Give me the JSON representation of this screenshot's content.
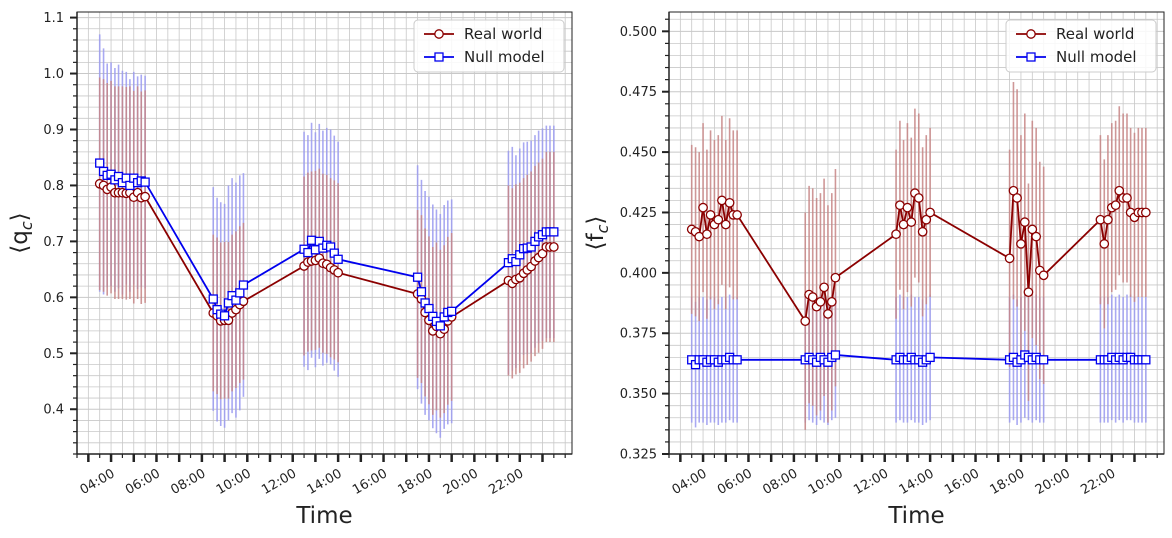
{
  "colors": {
    "real": "#8b0000",
    "real_bar": "#c78585",
    "null": "#0000ee",
    "null_bar": "#9a9af0",
    "grid": "#c8c8c8",
    "axis": "#222222",
    "background": "#ffffff"
  },
  "chart_data": [
    {
      "type": "line",
      "id": "qc",
      "ylabel": "⟨q_c⟩",
      "ylabel_base": "⟨q",
      "ylabel_sub": "c",
      "ylabel_close": "⟩",
      "xlabel": "Time",
      "xlim": [
        2.5,
        24.3
      ],
      "ylim": [
        0.32,
        1.11
      ],
      "yticks": [
        0.4,
        0.5,
        0.6,
        0.7,
        0.8,
        0.9,
        1.0,
        1.1
      ],
      "ytick_labels": [
        "0.4",
        "0.5",
        "0.6",
        "0.7",
        "0.8",
        "0.9",
        "1.0",
        "1.1"
      ],
      "x_major_ticks": [
        4,
        6,
        8,
        10,
        12,
        14,
        16,
        18,
        20,
        22
      ],
      "x_tick_labels": [
        "04:00",
        "06:00",
        "08:00",
        "10:00",
        "12:00",
        "14:00",
        "16:00",
        "18:00",
        "20:00",
        "22:00"
      ],
      "legend_position": "top-right",
      "grid": true,
      "series": [
        {
          "name": "Real world",
          "marker": "circle",
          "x": [
            3.5,
            3.67,
            3.83,
            4.0,
            4.17,
            4.33,
            4.5,
            4.67,
            4.83,
            5.0,
            5.17,
            5.33,
            5.5,
            8.5,
            8.67,
            8.83,
            9.0,
            9.17,
            9.33,
            9.5,
            9.67,
            9.83,
            12.5,
            12.67,
            12.83,
            13.0,
            13.17,
            13.33,
            13.5,
            13.67,
            13.83,
            14.0,
            17.5,
            17.67,
            17.83,
            18.0,
            18.17,
            18.33,
            18.5,
            18.67,
            18.83,
            19.0,
            21.5,
            21.67,
            21.83,
            22.0,
            22.17,
            22.33,
            22.5,
            22.67,
            22.83,
            23.0,
            23.17,
            23.33,
            23.5
          ],
          "y": [
            0.803,
            0.8,
            0.793,
            0.797,
            0.787,
            0.787,
            0.787,
            0.786,
            0.787,
            0.779,
            0.787,
            0.778,
            0.78,
            0.572,
            0.567,
            0.558,
            0.559,
            0.559,
            0.572,
            0.578,
            0.587,
            0.593,
            0.656,
            0.663,
            0.665,
            0.666,
            0.67,
            0.661,
            0.659,
            0.653,
            0.649,
            0.644,
            0.606,
            0.597,
            0.573,
            0.559,
            0.54,
            0.548,
            0.535,
            0.543,
            0.558,
            0.565,
            0.63,
            0.625,
            0.632,
            0.635,
            0.643,
            0.649,
            0.655,
            0.665,
            0.671,
            0.678,
            0.69,
            0.69,
            0.69
          ],
          "errors": [
            0.19,
            0.19,
            0.19,
            0.19,
            0.19,
            0.19,
            0.19,
            0.19,
            0.19,
            0.19,
            0.19,
            0.19,
            0.19,
            0.14,
            0.14,
            0.14,
            0.14,
            0.14,
            0.14,
            0.14,
            0.14,
            0.14,
            0.16,
            0.16,
            0.16,
            0.16,
            0.16,
            0.16,
            0.16,
            0.16,
            0.16,
            0.16,
            0.15,
            0.15,
            0.15,
            0.15,
            0.15,
            0.15,
            0.15,
            0.15,
            0.15,
            0.15,
            0.17,
            0.17,
            0.17,
            0.17,
            0.17,
            0.17,
            0.17,
            0.17,
            0.17,
            0.17,
            0.17,
            0.17,
            0.17
          ]
        },
        {
          "name": "Null model",
          "marker": "square",
          "x": [
            3.5,
            3.67,
            3.83,
            4.0,
            4.17,
            4.33,
            4.5,
            4.67,
            4.83,
            5.0,
            5.17,
            5.33,
            5.5,
            8.5,
            8.67,
            8.83,
            9.0,
            9.17,
            9.33,
            9.5,
            9.67,
            9.83,
            12.5,
            12.67,
            12.83,
            13.0,
            13.17,
            13.33,
            13.5,
            13.67,
            13.83,
            14.0,
            17.5,
            17.67,
            17.83,
            18.0,
            18.17,
            18.33,
            18.5,
            18.67,
            18.83,
            19.0,
            21.5,
            21.67,
            21.83,
            22.0,
            22.17,
            22.33,
            22.5,
            22.67,
            22.83,
            23.0,
            23.17,
            23.33,
            23.5
          ],
          "y": [
            0.84,
            0.825,
            0.818,
            0.82,
            0.81,
            0.816,
            0.805,
            0.813,
            0.8,
            0.813,
            0.805,
            0.808,
            0.806,
            0.597,
            0.578,
            0.57,
            0.567,
            0.59,
            0.603,
            0.595,
            0.608,
            0.622,
            0.686,
            0.68,
            0.702,
            0.685,
            0.7,
            0.688,
            0.693,
            0.69,
            0.679,
            0.668,
            0.636,
            0.61,
            0.59,
            0.58,
            0.566,
            0.557,
            0.549,
            0.565,
            0.573,
            0.575,
            0.662,
            0.669,
            0.664,
            0.676,
            0.687,
            0.688,
            0.69,
            0.7,
            0.708,
            0.712,
            0.717,
            0.717,
            0.717
          ],
          "errors": [
            0.23,
            0.22,
            0.2,
            0.2,
            0.2,
            0.2,
            0.2,
            0.19,
            0.19,
            0.19,
            0.19,
            0.19,
            0.19,
            0.2,
            0.2,
            0.2,
            0.2,
            0.21,
            0.21,
            0.21,
            0.21,
            0.2,
            0.21,
            0.21,
            0.21,
            0.21,
            0.21,
            0.21,
            0.21,
            0.21,
            0.21,
            0.21,
            0.2,
            0.2,
            0.2,
            0.2,
            0.2,
            0.2,
            0.2,
            0.2,
            0.2,
            0.2,
            0.2,
            0.2,
            0.19,
            0.19,
            0.19,
            0.19,
            0.19,
            0.19,
            0.19,
            0.19,
            0.19,
            0.19,
            0.19
          ]
        }
      ]
    },
    {
      "type": "line",
      "id": "fc",
      "ylabel": "⟨f_c⟩",
      "ylabel_base": "⟨f",
      "ylabel_sub": "c",
      "ylabel_close": "⟩",
      "xlabel": "Time",
      "xlim": [
        2.5,
        24.3
      ],
      "ylim": [
        0.325,
        0.508
      ],
      "yticks": [
        0.325,
        0.35,
        0.375,
        0.4,
        0.425,
        0.45,
        0.475,
        0.5
      ],
      "ytick_labels": [
        "0.325",
        "0.350",
        "0.375",
        "0.400",
        "0.425",
        "0.450",
        "0.475",
        "0.500"
      ],
      "x_major_ticks": [
        4,
        6,
        8,
        10,
        12,
        14,
        16,
        18,
        20,
        22
      ],
      "x_tick_labels": [
        "04:00",
        "06:00",
        "08:00",
        "10:00",
        "12:00",
        "14:00",
        "16:00",
        "18:00",
        "20:00",
        "22:00"
      ],
      "legend_position": "top-right",
      "grid": true,
      "series": [
        {
          "name": "Real world",
          "marker": "circle",
          "x": [
            3.5,
            3.67,
            3.83,
            4.0,
            4.17,
            4.33,
            4.5,
            4.67,
            4.83,
            5.0,
            5.17,
            5.33,
            5.5,
            8.5,
            8.67,
            8.83,
            9.0,
            9.17,
            9.33,
            9.5,
            9.67,
            9.83,
            12.5,
            12.67,
            12.83,
            13.0,
            13.17,
            13.33,
            13.5,
            13.67,
            13.83,
            14.0,
            17.5,
            17.67,
            17.83,
            18.0,
            18.17,
            18.33,
            18.5,
            18.67,
            18.83,
            19.0,
            21.5,
            21.67,
            21.83,
            22.0,
            22.17,
            22.33,
            22.5,
            22.67,
            22.83,
            23.0,
            23.17,
            23.33,
            23.5
          ],
          "y": [
            0.418,
            0.417,
            0.415,
            0.427,
            0.416,
            0.424,
            0.42,
            0.422,
            0.43,
            0.42,
            0.429,
            0.424,
            0.424,
            0.38,
            0.391,
            0.39,
            0.386,
            0.388,
            0.394,
            0.383,
            0.388,
            0.398,
            0.416,
            0.428,
            0.42,
            0.427,
            0.421,
            0.433,
            0.431,
            0.417,
            0.422,
            0.425,
            0.406,
            0.434,
            0.431,
            0.412,
            0.421,
            0.392,
            0.418,
            0.415,
            0.401,
            0.399,
            0.422,
            0.412,
            0.422,
            0.427,
            0.428,
            0.434,
            0.431,
            0.431,
            0.425,
            0.423,
            0.425,
            0.425,
            0.425
          ],
          "errors": [
            0.035,
            0.035,
            0.035,
            0.035,
            0.035,
            0.035,
            0.035,
            0.035,
            0.035,
            0.035,
            0.035,
            0.035,
            0.035,
            0.045,
            0.045,
            0.045,
            0.045,
            0.045,
            0.045,
            0.045,
            0.045,
            0.045,
            0.035,
            0.035,
            0.035,
            0.035,
            0.035,
            0.035,
            0.035,
            0.035,
            0.035,
            0.035,
            0.045,
            0.045,
            0.045,
            0.045,
            0.045,
            0.045,
            0.045,
            0.045,
            0.045,
            0.045,
            0.035,
            0.035,
            0.035,
            0.035,
            0.035,
            0.035,
            0.035,
            0.035,
            0.035,
            0.035,
            0.035,
            0.035,
            0.035
          ]
        },
        {
          "name": "Null model",
          "marker": "square",
          "x": [
            3.5,
            3.67,
            3.83,
            4.0,
            4.17,
            4.33,
            4.5,
            4.67,
            4.83,
            5.0,
            5.17,
            5.33,
            5.5,
            8.5,
            8.67,
            8.83,
            9.0,
            9.17,
            9.33,
            9.5,
            9.67,
            9.83,
            12.5,
            12.67,
            12.83,
            13.0,
            13.17,
            13.33,
            13.5,
            13.67,
            13.83,
            14.0,
            17.5,
            17.67,
            17.83,
            18.0,
            18.17,
            18.33,
            18.5,
            18.67,
            18.83,
            19.0,
            21.5,
            21.67,
            21.83,
            22.0,
            22.17,
            22.33,
            22.5,
            22.67,
            22.83,
            23.0,
            23.17,
            23.33,
            23.5
          ],
          "y": [
            0.364,
            0.362,
            0.364,
            0.364,
            0.363,
            0.364,
            0.364,
            0.363,
            0.364,
            0.364,
            0.365,
            0.364,
            0.364,
            0.364,
            0.365,
            0.364,
            0.363,
            0.365,
            0.364,
            0.363,
            0.365,
            0.366,
            0.364,
            0.365,
            0.364,
            0.364,
            0.365,
            0.364,
            0.364,
            0.363,
            0.364,
            0.365,
            0.364,
            0.365,
            0.363,
            0.364,
            0.366,
            0.365,
            0.364,
            0.365,
            0.364,
            0.364,
            0.364,
            0.364,
            0.364,
            0.365,
            0.364,
            0.365,
            0.364,
            0.365,
            0.365,
            0.364,
            0.364,
            0.364,
            0.364
          ],
          "errors": [
            0.026,
            0.026,
            0.026,
            0.026,
            0.026,
            0.026,
            0.026,
            0.026,
            0.026,
            0.026,
            0.026,
            0.026,
            0.026,
            0.026,
            0.026,
            0.026,
            0.026,
            0.026,
            0.026,
            0.026,
            0.026,
            0.026,
            0.026,
            0.026,
            0.026,
            0.026,
            0.026,
            0.026,
            0.026,
            0.026,
            0.026,
            0.026,
            0.026,
            0.026,
            0.026,
            0.026,
            0.026,
            0.026,
            0.026,
            0.026,
            0.026,
            0.026,
            0.026,
            0.026,
            0.026,
            0.026,
            0.026,
            0.026,
            0.026,
            0.026,
            0.026,
            0.026,
            0.026,
            0.026,
            0.026
          ]
        }
      ]
    }
  ]
}
